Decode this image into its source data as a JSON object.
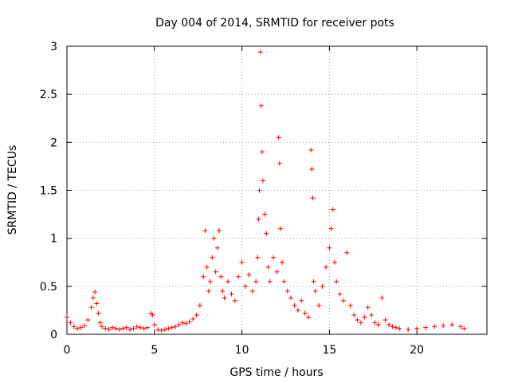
{
  "colors": {
    "series": "#ff0000",
    "axes": "#000000",
    "grid": "#a0a0a0",
    "background": "#ffffff"
  },
  "chart_data": {
    "type": "scatter",
    "title": "Day 004 of 2014, SRMTID for receiver pots",
    "xlabel": "GPS time / hours",
    "ylabel": "SRMTID / TECUs",
    "xlim": [
      0,
      24
    ],
    "ylim": [
      0,
      3
    ],
    "xticks": [
      0,
      5,
      10,
      15,
      20
    ],
    "yticks": [
      0,
      0.5,
      1,
      1.5,
      2,
      2.5,
      3
    ],
    "xtick_labels": [
      "0",
      "5",
      "10",
      "15",
      "20"
    ],
    "ytick_labels": [
      "0",
      "0.5",
      "1",
      "1.5",
      "2",
      "2.5",
      "3"
    ],
    "grid": true,
    "marker": "plus",
    "series": [
      {
        "name": "SRMTID",
        "x": [
          0.0,
          0.2,
          0.4,
          0.6,
          0.8,
          1.0,
          1.2,
          1.4,
          1.5,
          1.6,
          1.7,
          1.8,
          1.9,
          2.0,
          2.2,
          2.4,
          2.6,
          2.8,
          3.0,
          3.2,
          3.4,
          3.6,
          3.8,
          4.0,
          4.2,
          4.4,
          4.6,
          4.8,
          4.9,
          5.0,
          5.2,
          5.4,
          5.6,
          5.8,
          6.0,
          6.2,
          6.4,
          6.6,
          6.8,
          7.0,
          7.2,
          7.4,
          7.6,
          7.8,
          7.9,
          8.0,
          8.1,
          8.2,
          8.3,
          8.4,
          8.5,
          8.6,
          8.7,
          8.8,
          8.9,
          9.0,
          9.2,
          9.4,
          9.6,
          9.8,
          10.0,
          10.2,
          10.4,
          10.6,
          10.8,
          10.9,
          10.95,
          11.0,
          11.05,
          11.1,
          11.15,
          11.2,
          11.3,
          11.4,
          11.5,
          11.6,
          11.8,
          12.0,
          12.1,
          12.15,
          12.2,
          12.3,
          12.4,
          12.6,
          12.8,
          13.0,
          13.2,
          13.4,
          13.6,
          13.8,
          13.95,
          14.0,
          14.05,
          14.1,
          14.2,
          14.4,
          14.6,
          14.8,
          15.0,
          15.1,
          15.2,
          15.3,
          15.4,
          15.6,
          15.8,
          16.0,
          16.2,
          16.4,
          16.6,
          16.8,
          17.0,
          17.2,
          17.4,
          17.6,
          17.8,
          18.0,
          18.2,
          18.4,
          18.6,
          18.8,
          19.0,
          19.5,
          20.0,
          20.5,
          21.0,
          21.5,
          22.0,
          22.5,
          22.7
        ],
        "y": [
          0.18,
          0.12,
          0.08,
          0.06,
          0.07,
          0.09,
          0.15,
          0.28,
          0.38,
          0.44,
          0.32,
          0.22,
          0.12,
          0.08,
          0.06,
          0.05,
          0.07,
          0.06,
          0.05,
          0.06,
          0.07,
          0.05,
          0.06,
          0.08,
          0.07,
          0.06,
          0.07,
          0.22,
          0.2,
          0.1,
          0.05,
          0.04,
          0.05,
          0.06,
          0.07,
          0.08,
          0.1,
          0.12,
          0.11,
          0.13,
          0.16,
          0.2,
          0.3,
          0.6,
          1.08,
          0.7,
          0.45,
          0.55,
          0.8,
          1.0,
          0.65,
          0.9,
          1.08,
          0.6,
          0.45,
          0.38,
          0.55,
          0.42,
          0.35,
          0.6,
          0.75,
          0.5,
          0.62,
          0.45,
          0.55,
          0.8,
          1.2,
          1.5,
          2.94,
          2.38,
          1.9,
          1.6,
          1.25,
          1.05,
          0.7,
          0.55,
          0.8,
          0.65,
          2.05,
          1.78,
          1.1,
          0.75,
          0.55,
          0.45,
          0.38,
          0.3,
          0.25,
          0.35,
          0.22,
          0.18,
          1.92,
          1.72,
          1.42,
          0.55,
          0.45,
          0.3,
          0.5,
          0.7,
          0.9,
          1.1,
          1.3,
          0.75,
          0.55,
          0.42,
          0.35,
          0.85,
          0.3,
          0.2,
          0.15,
          0.12,
          0.18,
          0.28,
          0.2,
          0.12,
          0.1,
          0.38,
          0.15,
          0.1,
          0.08,
          0.07,
          0.06,
          0.05,
          0.06,
          0.07,
          0.08,
          0.09,
          0.1,
          0.08,
          0.06
        ]
      }
    ]
  }
}
